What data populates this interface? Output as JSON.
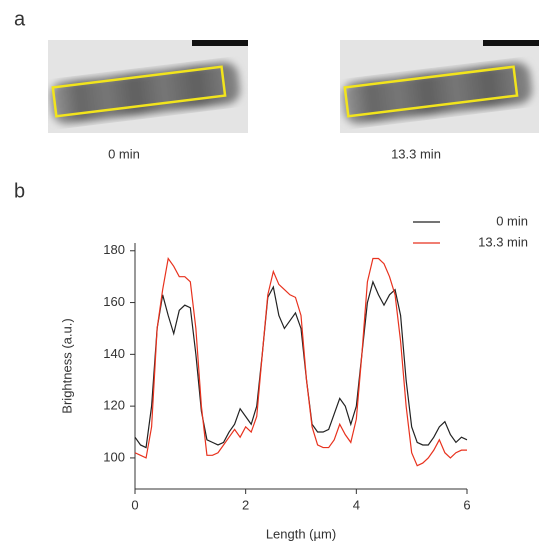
{
  "panels": [
    "a",
    "b"
  ],
  "images": [
    {
      "label": "0 min"
    },
    {
      "label": "13.3 min"
    }
  ],
  "chart_data": {
    "type": "line",
    "x_label": "Length (µm)",
    "y_label": "Brightness (a.u.)",
    "x": [
      0,
      0.1,
      0.2,
      0.3,
      0.4,
      0.5,
      0.6,
      0.7,
      0.8,
      0.9,
      1.0,
      1.1,
      1.2,
      1.3,
      1.4,
      1.5,
      1.6,
      1.7,
      1.8,
      1.9,
      2.0,
      2.1,
      2.2,
      2.3,
      2.4,
      2.5,
      2.6,
      2.7,
      2.8,
      2.9,
      3.0,
      3.1,
      3.2,
      3.3,
      3.4,
      3.5,
      3.6,
      3.7,
      3.8,
      3.9,
      4.0,
      4.1,
      4.2,
      4.3,
      4.4,
      4.5,
      4.6,
      4.7,
      4.8,
      4.9,
      5.0,
      5.1,
      5.2,
      5.3,
      5.4,
      5.5,
      5.6,
      5.7,
      5.8,
      5.9,
      6.0
    ],
    "series": [
      {
        "name": "0 min",
        "color": "#222222",
        "values": [
          108,
          105,
          104,
          120,
          150,
          163,
          155,
          148,
          157,
          159,
          158,
          140,
          118,
          107,
          106,
          105,
          106,
          110,
          113,
          119,
          116,
          113,
          120,
          140,
          162,
          166,
          155,
          150,
          153,
          156,
          150,
          130,
          113,
          110,
          110,
          111,
          117,
          123,
          120,
          113,
          120,
          140,
          160,
          168,
          163,
          159,
          163,
          165,
          155,
          130,
          112,
          106,
          105,
          105,
          108,
          112,
          114,
          109,
          106,
          108,
          107
        ]
      },
      {
        "name": "13.3 min",
        "color": "#e8321e",
        "values": [
          102,
          101,
          100,
          112,
          150,
          165,
          177,
          174,
          170,
          170,
          168,
          150,
          120,
          101,
          101,
          102,
          105,
          108,
          111,
          108,
          112,
          110,
          116,
          140,
          163,
          172,
          167,
          165,
          163,
          162,
          155,
          130,
          112,
          105,
          104,
          104,
          107,
          113,
          109,
          106,
          115,
          140,
          168,
          177,
          177,
          175,
          170,
          163,
          145,
          120,
          102,
          97,
          98,
          100,
          103,
          107,
          102,
          100,
          102,
          103,
          103
        ]
      }
    ],
    "xlim": [
      0,
      6
    ],
    "xticks": [
      0,
      2,
      4,
      6
    ],
    "ylim": [
      88,
      183
    ],
    "yticks": [
      100,
      120,
      140,
      160,
      180
    ],
    "grid": false,
    "legend": "top-right"
  }
}
